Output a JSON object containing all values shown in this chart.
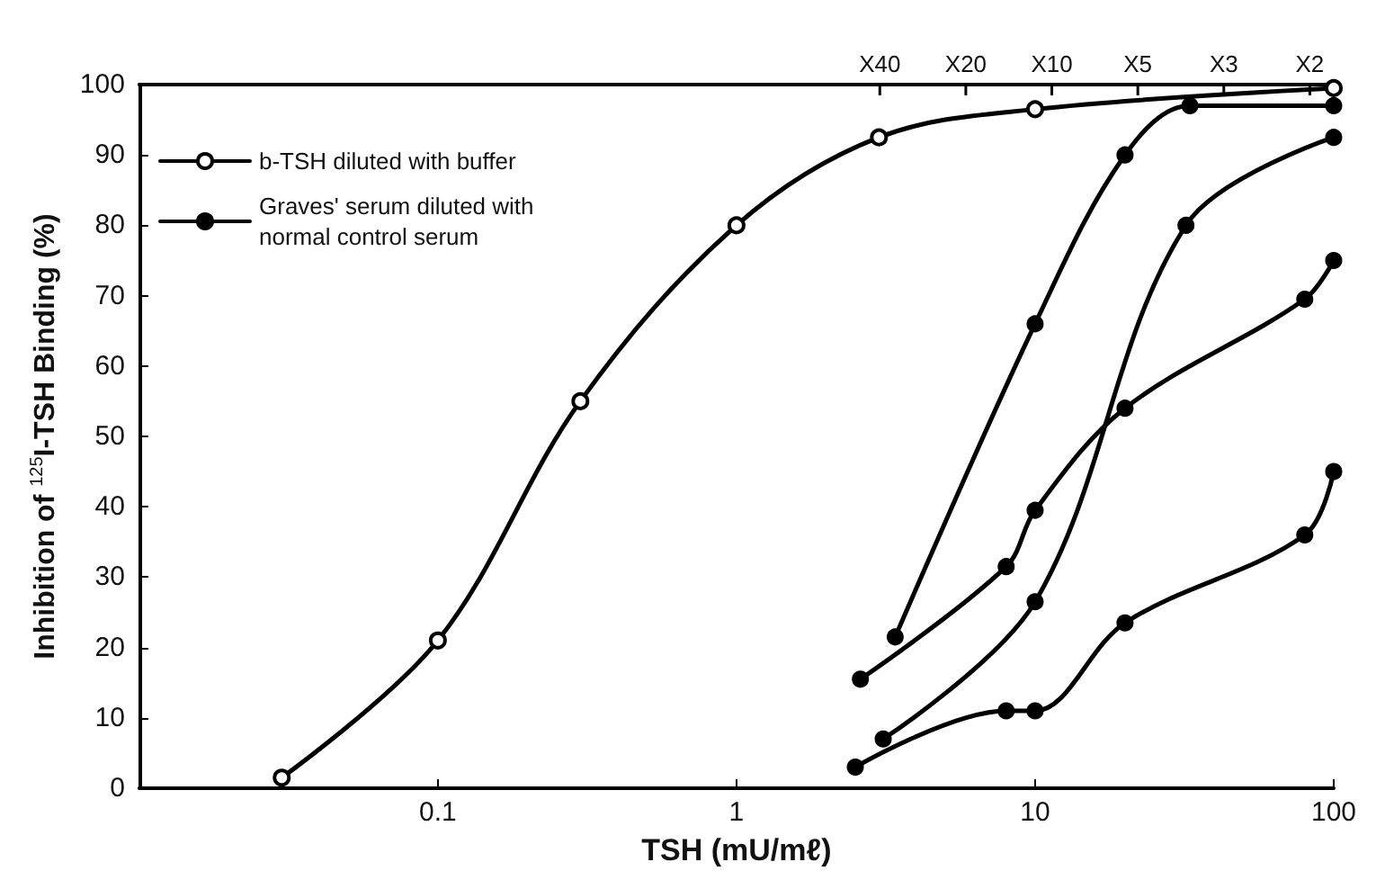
{
  "chart_data": {
    "type": "line",
    "xlabel": "TSH (mU/mℓ)",
    "ylabel": "Inhibition of $^{125}$I-TSH Binding (%)",
    "log": "x",
    "xlim": [
      0.01,
      100
    ],
    "xticks": [
      0.1,
      1,
      10,
      100
    ],
    "ylim": [
      0,
      100
    ],
    "yticks": [
      0,
      10,
      20,
      30,
      40,
      50,
      60,
      70,
      80,
      90,
      100
    ],
    "annotations": [
      "X40",
      "X20",
      "X10",
      "X5",
      "X3",
      "X2"
    ],
    "grid": false,
    "legend": "top left",
    "line_style": "solid",
    "series": [
      {
        "name": "b-TSH diluted with buffer",
        "color": "#000000",
        "marker": "open circle",
        "x": [
          0.03,
          0.1,
          0.3,
          1,
          3,
          10,
          100
        ],
        "values": [
          1.5,
          21,
          55,
          80,
          92.5,
          96.5,
          99.5
        ]
      },
      {
        "name": "Graves' serum diluted with normal control serum",
        "color": "#000000",
        "marker": "circle",
        "x": [
          3.4,
          10,
          20,
          33,
          100
        ],
        "values": [
          21.5,
          66,
          90,
          97,
          97
        ]
      },
      {
        "color": "#000000",
        "marker": "circle",
        "x": [
          2.6,
          8,
          10,
          20,
          80,
          100
        ],
        "values": [
          15.5,
          31.5,
          39.5,
          54,
          69.5,
          75
        ]
      },
      {
        "color": "#000000",
        "marker": "circle",
        "x": [
          3.1,
          10,
          32,
          100
        ],
        "values": [
          7,
          26.5,
          80,
          92.5
        ]
      },
      {
        "color": "#000000",
        "marker": "circle",
        "x": [
          2.5,
          8,
          10,
          20,
          80,
          100
        ],
        "values": [
          3,
          11,
          11,
          23.5,
          36,
          45
        ]
      }
    ]
  }
}
